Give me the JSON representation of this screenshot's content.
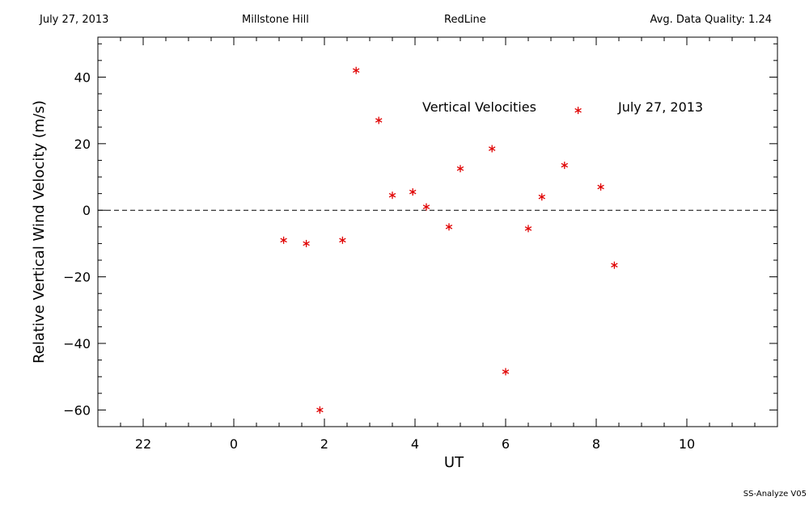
{
  "header": {
    "date": "July 27, 2013",
    "site": "Millstone Hill",
    "instrument": "RedLine",
    "quality": "Avg. Data Quality: 1.24"
  },
  "footer": "SS-Analyze V05",
  "colors": {
    "marker": "#e00000",
    "axes": "#000000"
  },
  "chart_data": {
    "type": "scatter",
    "xlabel": "UT",
    "ylabel": "Relative Vertical Wind Velocity (m/s)",
    "annotations": [
      "Vertical Velocities",
      "July 27, 2013"
    ],
    "xlim": [
      -3.0,
      12.0
    ],
    "ylim": [
      -65,
      52
    ],
    "xtick_labels": [
      "22",
      "0",
      "2",
      "4",
      "6",
      "8",
      "10"
    ],
    "ytick_values": [
      -60,
      -40,
      -20,
      0,
      20,
      40
    ],
    "zero_line": "dashed",
    "grid": false,
    "marker": "asterisk",
    "series": [
      {
        "x": [
          1.1,
          1.6,
          1.9,
          2.4,
          2.7,
          3.2,
          3.5,
          3.95,
          4.25,
          4.75,
          5.0,
          5.7,
          6.0,
          6.5,
          6.8,
          7.3,
          7.6,
          8.1,
          8.4
        ],
        "y": [
          -9,
          -10,
          -60,
          -9,
          42,
          27,
          4.5,
          5.5,
          1,
          -5,
          12.5,
          18.5,
          -48.5,
          -5.5,
          4,
          13.5,
          30,
          7,
          -16.5
        ]
      }
    ]
  }
}
